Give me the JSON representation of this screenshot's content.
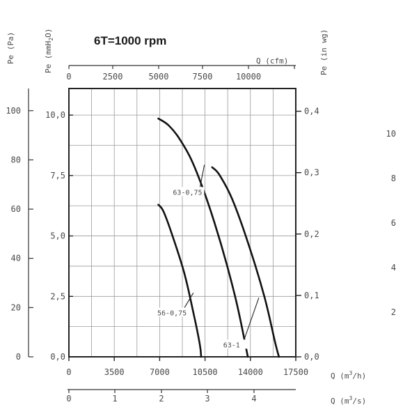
{
  "chart_data": {
    "type": "line",
    "title": "6T=1000 rpm",
    "axes": {
      "y_pa": {
        "label": "Pe (Pa)",
        "ticks": [
          "0",
          "20",
          "40",
          "60",
          "80",
          "100"
        ],
        "range": [
          0,
          109
        ]
      },
      "y_mmh2o": {
        "label": "Pe (mmH2O)",
        "ticks": [
          "0,0",
          "2,5",
          "5,0",
          "7,5",
          "10,0"
        ],
        "range": [
          0,
          11.1
        ]
      },
      "y_inwg": {
        "label": "Pe (in wg)",
        "ticks": [
          "0,0",
          "0,1",
          "0,2",
          "0,3",
          "0,4"
        ],
        "range": [
          0,
          0.437
        ]
      },
      "y_outer": {
        "ticks": [
          "2",
          "4",
          "6",
          "8",
          "10"
        ]
      },
      "x_m3h": {
        "label": "Q (m3/h)",
        "ticks": [
          "0",
          "3500",
          "7000",
          "10500",
          "14000",
          "17500"
        ],
        "range": [
          0,
          17500
        ]
      },
      "x_cfm": {
        "label": "Q (cfm)",
        "ticks": [
          "0",
          "2500",
          "5000",
          "7500",
          "10000"
        ]
      },
      "x_m3s": {
        "label": "Q (m3/s)",
        "ticks": [
          "0",
          "1",
          "2",
          "3",
          "4"
        ]
      }
    },
    "grid": true,
    "series": [
      {
        "name": "63-0,75",
        "x": [
          6900,
          7700,
          8600,
          9700,
          11200,
          12800,
          13800
        ],
        "y": [
          96.8,
          94,
          88,
          77,
          55,
          25,
          0
        ]
      },
      {
        "name": "56-0,75",
        "x": [
          6900,
          7300,
          8000,
          8900,
          9600,
          10100,
          10200
        ],
        "y": [
          61.8,
          59,
          49,
          34,
          18,
          5,
          0
        ]
      },
      {
        "name": "63-1",
        "x": [
          11050,
          11600,
          12600,
          13900,
          15100,
          15900,
          16200
        ],
        "y": [
          77,
          74,
          64,
          45,
          24,
          6,
          0
        ]
      }
    ],
    "annotations": [
      {
        "text": "63-0,75",
        "label_x": 9150,
        "label_y": 67,
        "arrow_x": 10450,
        "arrow_y": 78
      },
      {
        "text": "56-0,75",
        "label_x": 7950,
        "label_y": 18,
        "arrow_x": 9600,
        "arrow_y": 26
      },
      {
        "text": "63-1",
        "label_x": 12550,
        "label_y": 5,
        "arrow_x": 14650,
        "arrow_y": 24
      }
    ]
  }
}
